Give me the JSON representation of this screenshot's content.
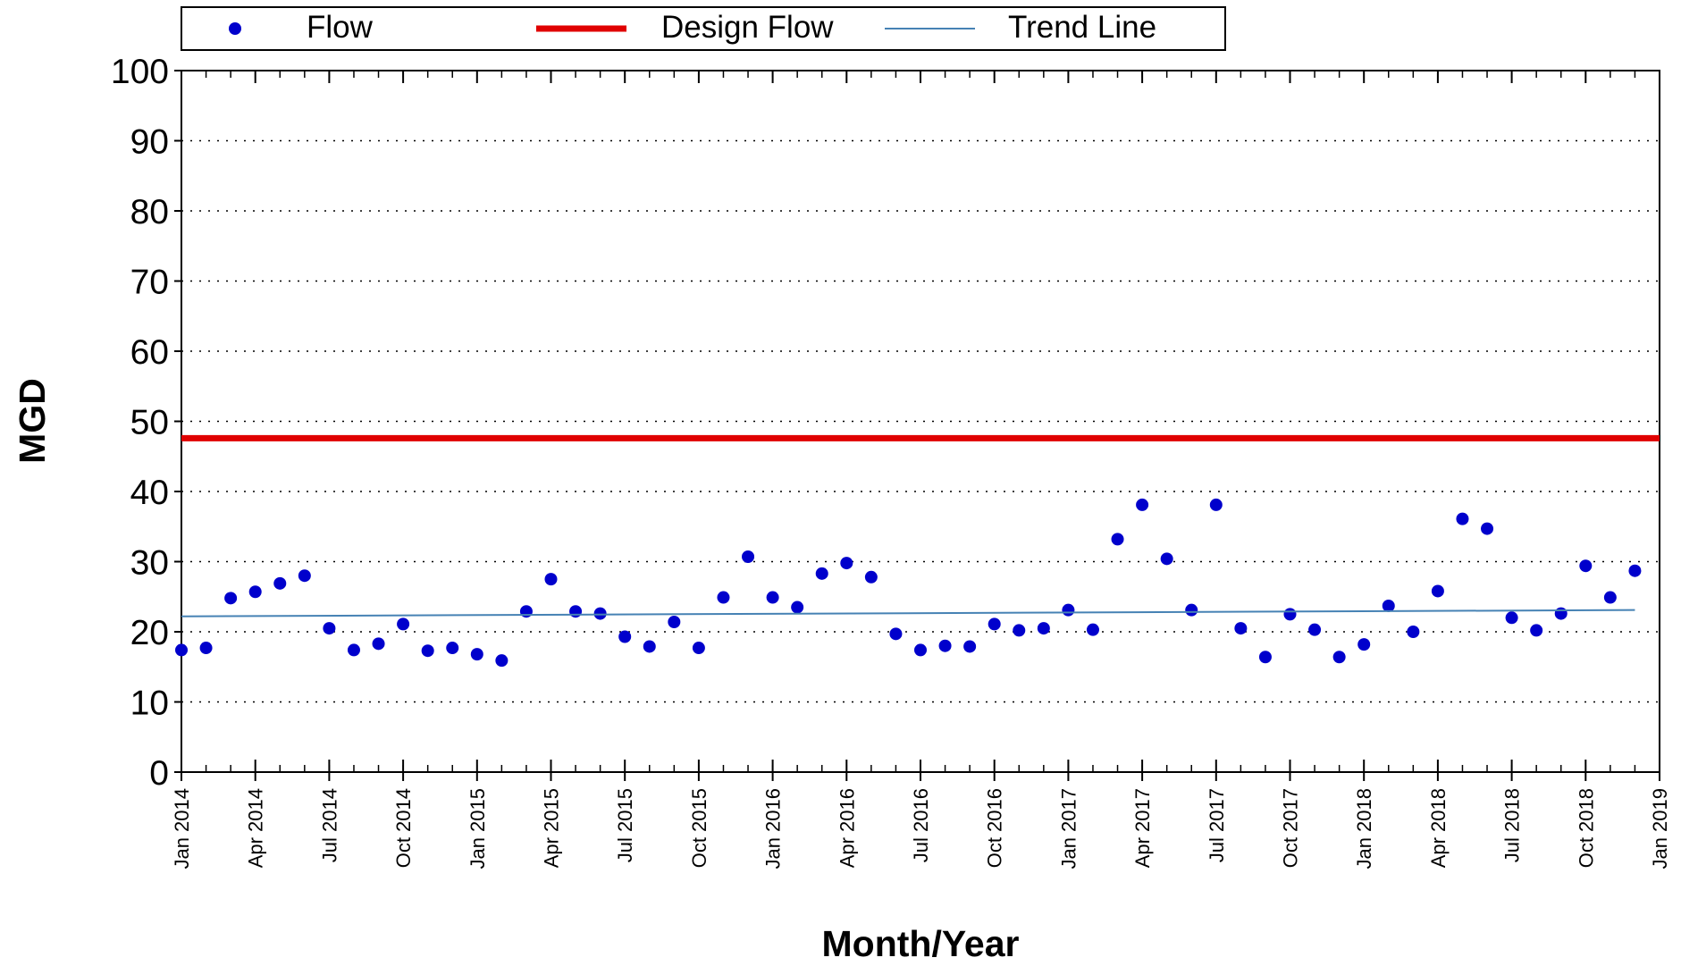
{
  "chart_data": {
    "type": "scatter",
    "xlabel": "Month/Year",
    "ylabel": "MGD",
    "ylim": [
      0,
      100
    ],
    "yticks": [
      0,
      10,
      20,
      30,
      40,
      50,
      60,
      70,
      80,
      90,
      100
    ],
    "xlim": [
      "2014-01",
      "2019-01"
    ],
    "xticks": [
      {
        "value": "2014-01",
        "label": "Jan 2014"
      },
      {
        "value": "2014-04",
        "label": "Apr 2014"
      },
      {
        "value": "2014-07",
        "label": "Jul 2014"
      },
      {
        "value": "2014-10",
        "label": "Oct 2014"
      },
      {
        "value": "2015-01",
        "label": "Jan 2015"
      },
      {
        "value": "2015-04",
        "label": "Apr 2015"
      },
      {
        "value": "2015-07",
        "label": "Jul 2015"
      },
      {
        "value": "2015-10",
        "label": "Oct 2015"
      },
      {
        "value": "2016-01",
        "label": "Jan 2016"
      },
      {
        "value": "2016-04",
        "label": "Apr 2016"
      },
      {
        "value": "2016-07",
        "label": "Jul 2016"
      },
      {
        "value": "2016-10",
        "label": "Oct 2016"
      },
      {
        "value": "2017-01",
        "label": "Jan 2017"
      },
      {
        "value": "2017-04",
        "label": "Apr 2017"
      },
      {
        "value": "2017-07",
        "label": "Jul 2017"
      },
      {
        "value": "2017-10",
        "label": "Oct 2017"
      },
      {
        "value": "2018-01",
        "label": "Jan 2018"
      },
      {
        "value": "2018-04",
        "label": "Apr 2018"
      },
      {
        "value": "2018-07",
        "label": "Jul 2018"
      },
      {
        "value": "2018-10",
        "label": "Oct 2018"
      },
      {
        "value": "2019-01",
        "label": "Jan 2019"
      }
    ],
    "grid": true,
    "legend": "top",
    "series": [
      {
        "name": "Flow",
        "color": "#0000cc",
        "mode": "markers",
        "x": [
          "2014-01",
          "2014-02",
          "2014-03",
          "2014-04",
          "2014-05",
          "2014-06",
          "2014-07",
          "2014-08",
          "2014-09",
          "2014-10",
          "2014-11",
          "2014-12",
          "2015-01",
          "2015-02",
          "2015-03",
          "2015-04",
          "2015-05",
          "2015-06",
          "2015-07",
          "2015-08",
          "2015-09",
          "2015-10",
          "2015-11",
          "2015-12",
          "2016-01",
          "2016-02",
          "2016-03",
          "2016-04",
          "2016-05",
          "2016-06",
          "2016-07",
          "2016-08",
          "2016-09",
          "2016-10",
          "2016-11",
          "2016-12",
          "2017-01",
          "2017-02",
          "2017-03",
          "2017-04",
          "2017-05",
          "2017-06",
          "2017-07",
          "2017-08",
          "2017-09",
          "2017-10",
          "2017-11",
          "2017-12",
          "2018-01",
          "2018-02",
          "2018-03",
          "2018-04",
          "2018-05",
          "2018-06",
          "2018-07",
          "2018-08",
          "2018-09",
          "2018-10",
          "2018-11",
          "2018-12"
        ],
        "values": [
          17.4,
          17.7,
          24.8,
          25.7,
          26.9,
          28.0,
          20.5,
          17.4,
          18.3,
          21.1,
          17.3,
          17.7,
          16.8,
          15.9,
          22.9,
          27.5,
          22.9,
          22.6,
          19.3,
          17.9,
          21.4,
          17.7,
          24.9,
          30.7,
          24.9,
          23.5,
          28.3,
          29.8,
          27.8,
          19.7,
          17.4,
          18.0,
          17.9,
          21.1,
          20.2,
          20.5,
          23.1,
          20.3,
          33.2,
          38.1,
          30.4,
          23.1,
          38.1,
          20.5,
          16.4,
          22.5,
          20.3,
          16.4,
          18.2,
          23.7,
          20.0,
          25.8,
          36.1,
          34.7,
          22.0,
          20.2,
          22.6,
          29.4,
          24.9,
          28.7
        ]
      },
      {
        "name": "Design Flow",
        "color": "#e00000",
        "mode": "thick-line",
        "x": [
          "2014-01",
          "2019-01"
        ],
        "values": [
          47.6,
          47.6
        ]
      },
      {
        "name": "Trend Line",
        "color": "#4682b4",
        "mode": "line",
        "x": [
          "2014-01",
          "2018-12"
        ],
        "values": [
          22.2,
          23.1
        ]
      }
    ]
  }
}
